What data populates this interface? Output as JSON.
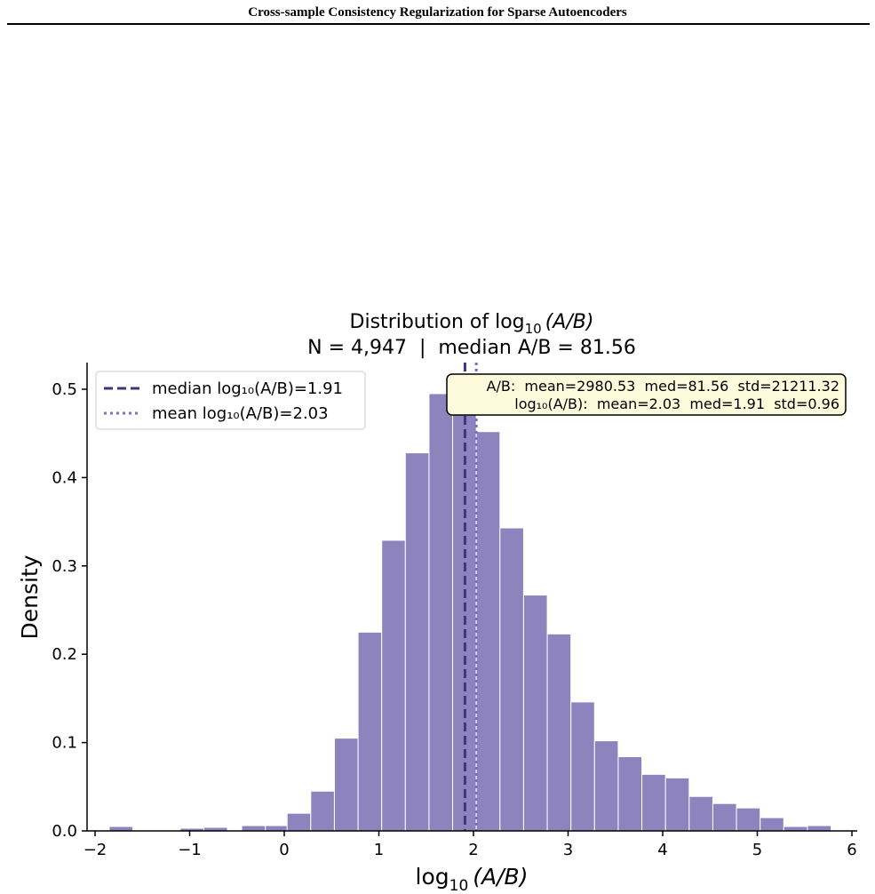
{
  "paper": {
    "running_header": "Cross-sample Consistency Regularization for Sparse Autoencoders"
  },
  "chart_data": {
    "type": "bar",
    "title_line1": "Distribution of log",
    "title_sub": "10",
    "title_var": "(A/B)",
    "title_line2": "N = 4,947  |  median A/B = 81.56",
    "xlabel_main": "log",
    "xlabel_sub": "10",
    "xlabel_var": "(A/B)",
    "ylabel": "Density",
    "xlim": [
      -2.1,
      6.1
    ],
    "ylim": [
      0,
      0.53
    ],
    "bin_width": 0.25,
    "x_ticks": [
      -2,
      -1,
      0,
      1,
      2,
      3,
      4,
      5,
      6
    ],
    "x_tick_labels": [
      "−2",
      "−1",
      "0",
      "1",
      "2",
      "3",
      "4",
      "5",
      "6"
    ],
    "y_ticks": [
      0.0,
      0.1,
      0.2,
      0.3,
      0.4,
      0.5
    ],
    "y_tick_labels": [
      "0.0",
      "0.1",
      "0.2",
      "0.3",
      "0.4",
      "0.5"
    ],
    "bar_color": "#8e84bd",
    "bars": [
      {
        "x0": -1.85,
        "value": 0.005
      },
      {
        "x0": -1.6,
        "value": 0.001
      },
      {
        "x0": -1.35,
        "value": 0.001
      },
      {
        "x0": -1.1,
        "value": 0.003
      },
      {
        "x0": -0.85,
        "value": 0.004
      },
      {
        "x0": -0.6,
        "value": 0.001
      },
      {
        "x0": -0.45,
        "value": 0.006
      },
      {
        "x0": -0.2,
        "value": 0.006
      },
      {
        "x0": 0.03,
        "value": 0.02
      },
      {
        "x0": 0.28,
        "value": 0.045
      },
      {
        "x0": 0.53,
        "value": 0.105
      },
      {
        "x0": 0.78,
        "value": 0.225
      },
      {
        "x0": 1.03,
        "value": 0.329
      },
      {
        "x0": 1.28,
        "value": 0.428
      },
      {
        "x0": 1.53,
        "value": 0.495
      },
      {
        "x0": 1.78,
        "value": 0.495
      },
      {
        "x0": 2.03,
        "value": 0.452
      },
      {
        "x0": 2.28,
        "value": 0.343
      },
      {
        "x0": 2.53,
        "value": 0.267
      },
      {
        "x0": 2.78,
        "value": 0.223
      },
      {
        "x0": 3.03,
        "value": 0.146
      },
      {
        "x0": 3.28,
        "value": 0.102
      },
      {
        "x0": 3.53,
        "value": 0.084
      },
      {
        "x0": 3.78,
        "value": 0.064
      },
      {
        "x0": 4.03,
        "value": 0.06
      },
      {
        "x0": 4.28,
        "value": 0.039
      },
      {
        "x0": 4.53,
        "value": 0.031
      },
      {
        "x0": 4.78,
        "value": 0.026
      },
      {
        "x0": 5.03,
        "value": 0.015
      },
      {
        "x0": 5.28,
        "value": 0.005
      },
      {
        "x0": 5.53,
        "value": 0.006
      }
    ],
    "median_line": {
      "x": 1.91,
      "color": "#3f3480",
      "style": "dashed"
    },
    "mean_line": {
      "x": 2.03,
      "color": "#7b6fc4",
      "style": "dotted"
    },
    "legend": {
      "placement": "upper-left",
      "entries": [
        {
          "label": "median log₁₀(A/B)=1.91",
          "style": "dashed",
          "color": "#3f3480"
        },
        {
          "label": "mean log₁₀(A/B)=2.03",
          "style": "dotted",
          "color": "#7b6fc4"
        }
      ]
    },
    "stats_box": {
      "placement": "upper-right",
      "background": "#fefbdc",
      "line1": "A/B:  mean=2980.53  med=81.56  std=21211.32",
      "line2": "log₁₀(A/B):  mean=2.03  med=1.91  std=0.96"
    }
  }
}
